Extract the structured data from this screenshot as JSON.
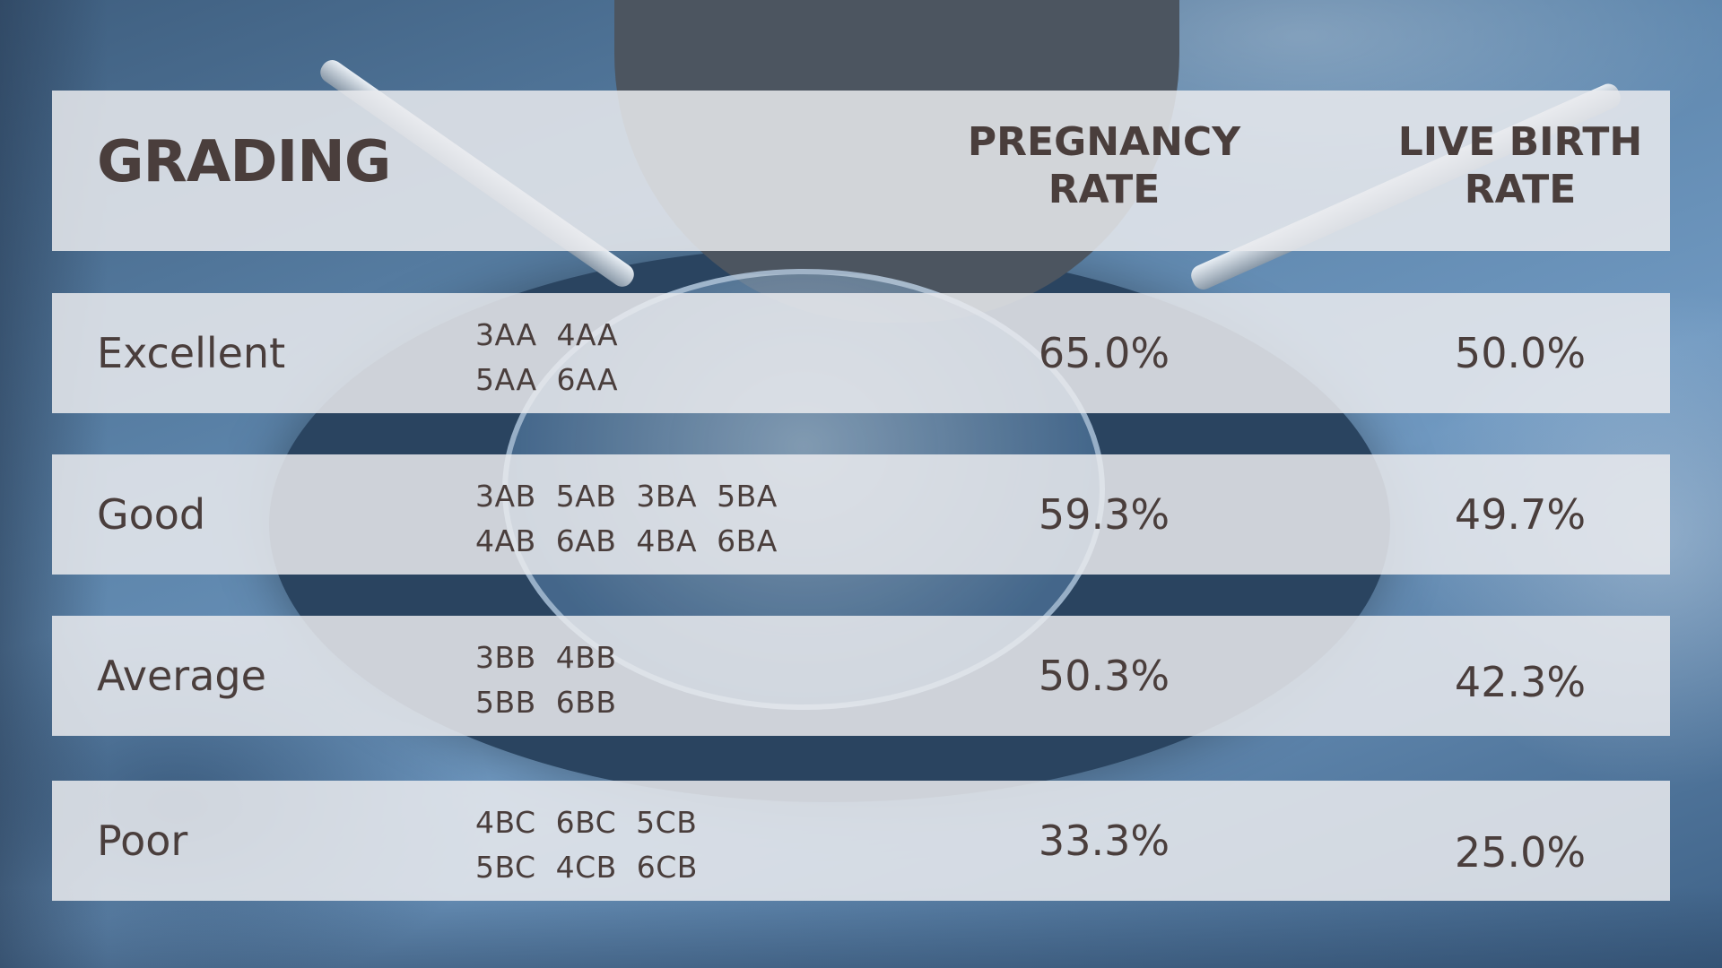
{
  "header": {
    "grading_label": "GRADING",
    "pregnancy_line1": "PREGNANCY",
    "pregnancy_line2": "RATE",
    "livebirth_line1": "LIVE BIRTH",
    "livebirth_line2": "RATE"
  },
  "rows": [
    {
      "grade": "Excellent",
      "codes_line1": "3AA  4AA",
      "codes_line2": "5AA  6AA",
      "pregnancy_rate": "65.0%",
      "live_birth_rate": "50.0%"
    },
    {
      "grade": "Good",
      "codes_line1": "3AB  5AB  3BA  5BA",
      "codes_line2": "4AB  6AB  4BA  6BA",
      "pregnancy_rate": "59.3%",
      "live_birth_rate": "49.7%"
    },
    {
      "grade": "Average",
      "codes_line1": "3BB  4BB",
      "codes_line2": "5BB  6BB",
      "pregnancy_rate": "50.3%",
      "live_birth_rate": "42.3%"
    },
    {
      "grade": "Poor",
      "codes_line1": "4BC  6BC  5CB",
      "codes_line2": "5BC  4CB  6CB",
      "pregnancy_rate": "33.3%",
      "live_birth_rate": "25.0%"
    }
  ],
  "colors": {
    "text": "#4a3e3c",
    "panel": "#e9eaee",
    "background": "#5c84aa"
  }
}
